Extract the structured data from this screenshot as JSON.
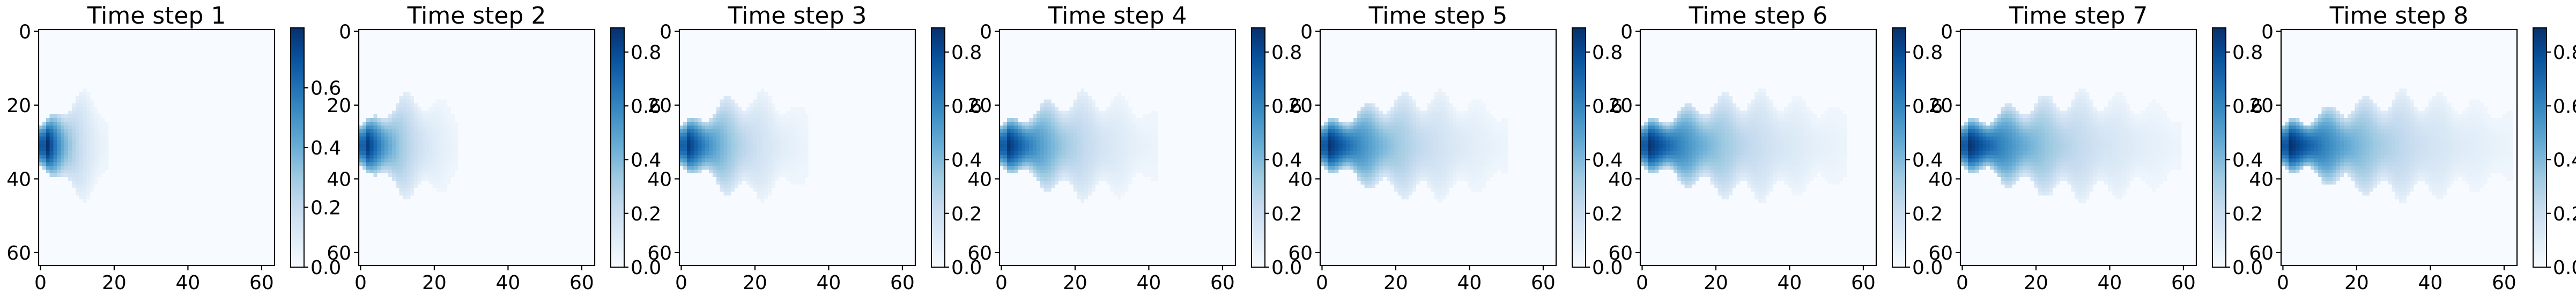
{
  "figure": {
    "panels": [
      {
        "title": "Time step 1"
      },
      {
        "title": "Time step 2"
      },
      {
        "title": "Time step 3"
      },
      {
        "title": "Time step 4"
      },
      {
        "title": "Time step 5"
      },
      {
        "title": "Time step 6"
      },
      {
        "title": "Time step 7"
      },
      {
        "title": "Time step 8"
      }
    ]
  },
  "chart_data": {
    "type": "heatmap",
    "colormap": "Blues",
    "colormap_stops": [
      "#f7fbff",
      "#deebf7",
      "#c6dbef",
      "#9ecae1",
      "#6baed6",
      "#4292c6",
      "#2171b5",
      "#08519c",
      "#08306b"
    ],
    "grid_size": [
      64,
      64
    ],
    "xlim": [
      0,
      63
    ],
    "ylim": [
      63,
      0
    ],
    "y_inverted": true,
    "x_ticks": [
      0,
      20,
      40,
      60
    ],
    "y_ticks": [
      0,
      20,
      40,
      60
    ],
    "source": {
      "x": 2,
      "y": 31
    },
    "panels": [
      {
        "title": "Time step 1",
        "extent_x": 18,
        "peak": 0.8,
        "colorbar_ticks": [
          0.0,
          0.2,
          0.4,
          0.6
        ]
      },
      {
        "title": "Time step 2",
        "extent_x": 26,
        "peak": 0.85,
        "colorbar_ticks": [
          0.0,
          0.2,
          0.4,
          0.6,
          0.8
        ]
      },
      {
        "title": "Time step 3",
        "extent_x": 34,
        "peak": 0.85,
        "colorbar_ticks": [
          0.0,
          0.2,
          0.4,
          0.6,
          0.8
        ]
      },
      {
        "title": "Time step 4",
        "extent_x": 42,
        "peak": 0.87,
        "colorbar_ticks": [
          0.0,
          0.2,
          0.4,
          0.6,
          0.8
        ]
      },
      {
        "title": "Time step 5",
        "extent_x": 50,
        "peak": 0.88,
        "colorbar_ticks": [
          0.0,
          0.2,
          0.4,
          0.6,
          0.8
        ]
      },
      {
        "title": "Time step 6",
        "extent_x": 55,
        "peak": 0.88,
        "colorbar_ticks": [
          0.0,
          0.2,
          0.4,
          0.6,
          0.8
        ]
      },
      {
        "title": "Time step 7",
        "extent_x": 59,
        "peak": 0.88,
        "colorbar_ticks": [
          0.0,
          0.2,
          0.4,
          0.6,
          0.8
        ]
      },
      {
        "title": "Time step 8",
        "extent_x": 62,
        "peak": 0.89,
        "colorbar_ticks": [
          0.0,
          0.2,
          0.4,
          0.6,
          0.8
        ]
      }
    ]
  }
}
